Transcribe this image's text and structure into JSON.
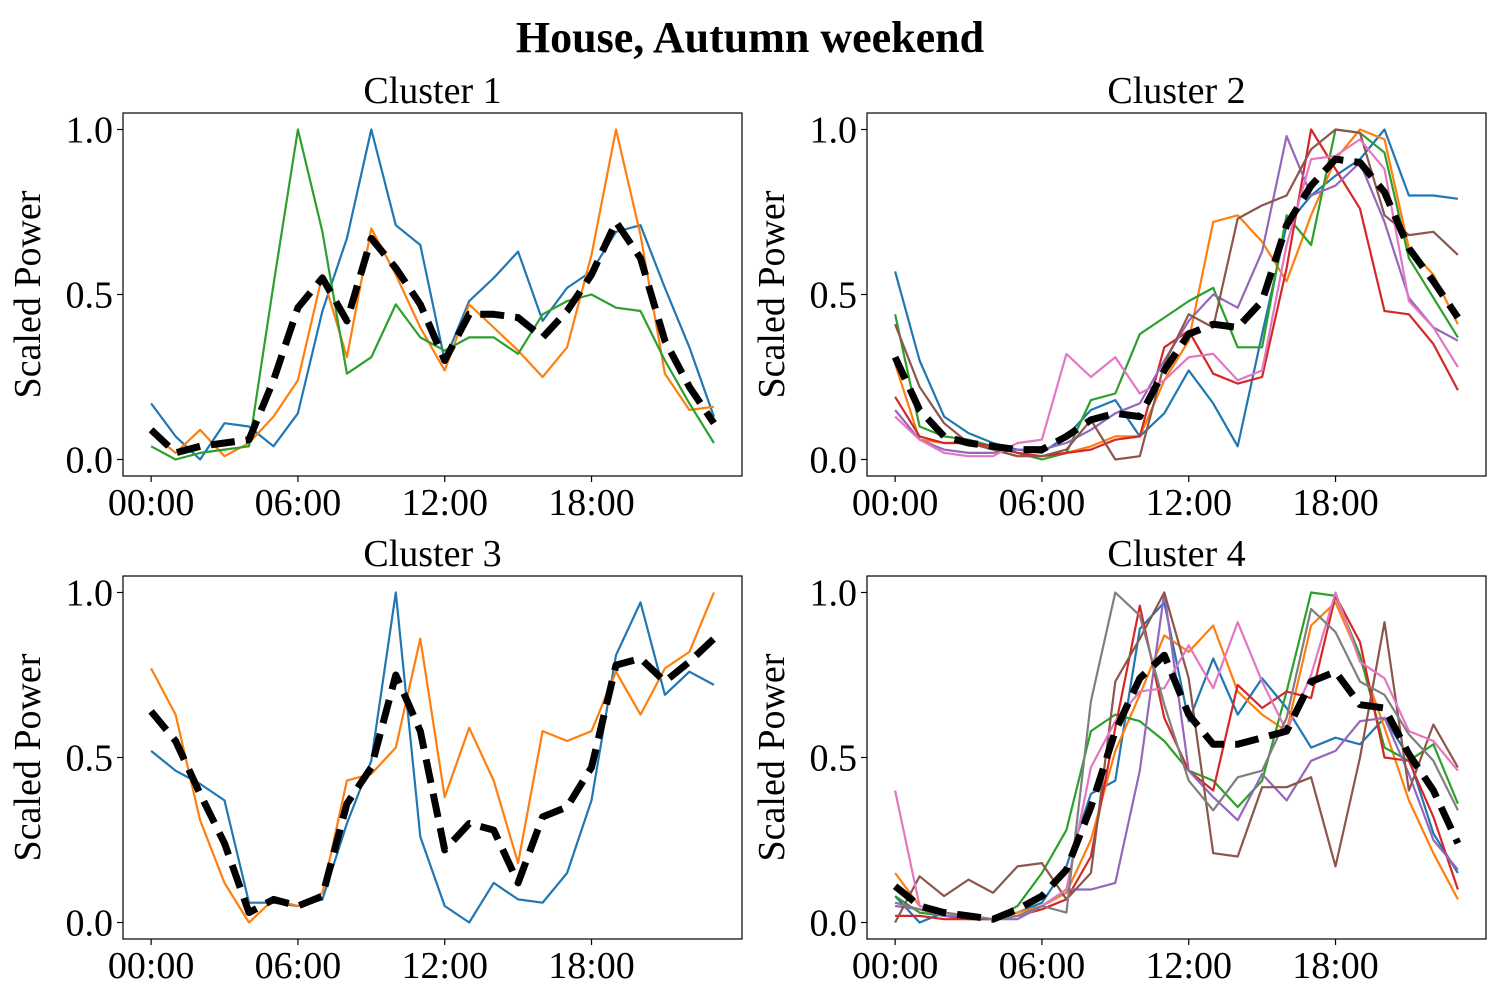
{
  "figure": {
    "title": "House, Autumn weekend"
  },
  "chart_data": [
    {
      "type": "line",
      "title": "Cluster 1",
      "xlabel": "",
      "ylabel": "Scaled Power",
      "x": [
        0,
        1,
        2,
        3,
        4,
        5,
        6,
        7,
        8,
        9,
        10,
        11,
        12,
        13,
        14,
        15,
        16,
        17,
        18,
        19,
        20,
        21,
        22,
        23
      ],
      "xlim": [
        -1.15,
        24.15
      ],
      "ylim": [
        -0.05,
        1.05
      ],
      "xticks": [
        0,
        6,
        12,
        18
      ],
      "xtick_labels": [
        "00:00",
        "06:00",
        "12:00",
        "18:00"
      ],
      "yticks": [
        0.0,
        0.5,
        1.0
      ],
      "ytick_labels": [
        "0.0",
        "0.5",
        "1.0"
      ],
      "series": [
        {
          "color": "#1f77b4",
          "values": [
            0.17,
            0.07,
            0.0,
            0.11,
            0.1,
            0.04,
            0.14,
            0.45,
            0.67,
            1.0,
            0.71,
            0.65,
            0.3,
            0.48,
            0.55,
            0.63,
            0.42,
            0.52,
            0.57,
            0.69,
            0.71,
            0.52,
            0.34,
            0.13
          ]
        },
        {
          "color": "#ff7f0e",
          "values": [
            0.08,
            0.02,
            0.09,
            0.01,
            0.05,
            0.13,
            0.24,
            0.56,
            0.31,
            0.7,
            0.56,
            0.4,
            0.27,
            0.47,
            0.4,
            0.33,
            0.25,
            0.34,
            0.62,
            1.0,
            0.68,
            0.26,
            0.15,
            0.16
          ]
        },
        {
          "color": "#2ca02c",
          "values": [
            0.04,
            0.0,
            0.02,
            0.03,
            0.04,
            0.53,
            1.0,
            0.69,
            0.26,
            0.31,
            0.47,
            0.37,
            0.33,
            0.37,
            0.37,
            0.32,
            0.44,
            0.48,
            0.5,
            0.46,
            0.45,
            0.3,
            0.17,
            0.05
          ]
        },
        {
          "name": "mean",
          "color": "#000000",
          "dashed": true,
          "values": [
            0.09,
            0.02,
            0.04,
            0.05,
            0.06,
            0.24,
            0.46,
            0.55,
            0.42,
            0.67,
            0.58,
            0.47,
            0.3,
            0.44,
            0.44,
            0.43,
            0.37,
            0.45,
            0.56,
            0.72,
            0.61,
            0.36,
            0.22,
            0.11
          ]
        }
      ]
    },
    {
      "type": "line",
      "title": "Cluster 2",
      "xlabel": "",
      "ylabel": "Scaled Power",
      "x": [
        0,
        1,
        2,
        3,
        4,
        5,
        6,
        7,
        8,
        9,
        10,
        11,
        12,
        13,
        14,
        15,
        16,
        17,
        18,
        19,
        20,
        21,
        22,
        23
      ],
      "xlim": [
        -1.15,
        24.15
      ],
      "ylim": [
        -0.05,
        1.05
      ],
      "xticks": [
        0,
        6,
        12,
        18
      ],
      "xtick_labels": [
        "00:00",
        "06:00",
        "12:00",
        "18:00"
      ],
      "yticks": [
        0.0,
        0.5,
        1.0
      ],
      "ytick_labels": [
        "0.0",
        "0.5",
        "1.0"
      ],
      "series": [
        {
          "color": "#1f77b4",
          "values": [
            0.57,
            0.3,
            0.13,
            0.08,
            0.05,
            0.03,
            0.02,
            0.07,
            0.15,
            0.18,
            0.07,
            0.14,
            0.27,
            0.17,
            0.04,
            0.38,
            0.71,
            0.8,
            0.86,
            0.91,
            1.0,
            0.8,
            0.8,
            0.79
          ]
        },
        {
          "color": "#ff7f0e",
          "values": [
            0.29,
            0.06,
            0.05,
            0.05,
            0.03,
            0.01,
            0.01,
            0.02,
            0.04,
            0.07,
            0.07,
            0.24,
            0.36,
            0.72,
            0.74,
            0.66,
            0.54,
            0.74,
            0.91,
            1.0,
            0.97,
            0.64,
            0.56,
            0.41
          ]
        },
        {
          "color": "#2ca02c",
          "values": [
            0.44,
            0.1,
            0.07,
            0.06,
            0.04,
            0.02,
            0.0,
            0.02,
            0.18,
            0.2,
            0.38,
            0.43,
            0.48,
            0.52,
            0.34,
            0.34,
            0.74,
            0.65,
            1.0,
            0.99,
            0.93,
            0.61,
            0.49,
            0.37
          ]
        },
        {
          "color": "#d62728",
          "values": [
            0.19,
            0.07,
            0.05,
            0.05,
            0.04,
            0.02,
            0.01,
            0.02,
            0.03,
            0.06,
            0.07,
            0.34,
            0.39,
            0.26,
            0.23,
            0.25,
            0.58,
            1.0,
            0.88,
            0.76,
            0.45,
            0.44,
            0.35,
            0.21
          ]
        },
        {
          "color": "#9467bd",
          "values": [
            0.15,
            0.06,
            0.03,
            0.02,
            0.02,
            0.03,
            0.03,
            0.05,
            0.09,
            0.14,
            0.17,
            0.3,
            0.42,
            0.5,
            0.46,
            0.63,
            0.98,
            0.8,
            0.83,
            0.9,
            0.72,
            0.49,
            0.4,
            0.36
          ]
        },
        {
          "color": "#8c564b",
          "values": [
            0.41,
            0.22,
            0.11,
            0.05,
            0.03,
            0.01,
            0.01,
            0.03,
            0.12,
            0.0,
            0.01,
            0.29,
            0.44,
            0.4,
            0.73,
            0.77,
            0.8,
            0.94,
            1.0,
            0.99,
            0.74,
            0.68,
            0.69,
            0.62
          ]
        },
        {
          "color": "#e377c2",
          "values": [
            0.13,
            0.06,
            0.02,
            0.01,
            0.01,
            0.05,
            0.06,
            0.32,
            0.25,
            0.31,
            0.2,
            0.24,
            0.31,
            0.32,
            0.24,
            0.27,
            0.65,
            0.91,
            0.92,
            0.97,
            0.88,
            0.48,
            0.4,
            0.28
          ]
        },
        {
          "name": "mean",
          "color": "#000000",
          "dashed": true,
          "values": [
            0.31,
            0.15,
            0.07,
            0.05,
            0.04,
            0.03,
            0.03,
            0.07,
            0.12,
            0.14,
            0.13,
            0.27,
            0.38,
            0.41,
            0.4,
            0.48,
            0.71,
            0.83,
            0.91,
            0.9,
            0.81,
            0.64,
            0.54,
            0.43
          ]
        }
      ]
    },
    {
      "type": "line",
      "title": "Cluster 3",
      "xlabel": "",
      "ylabel": "Scaled Power",
      "x": [
        0,
        1,
        2,
        3,
        4,
        5,
        6,
        7,
        8,
        9,
        10,
        11,
        12,
        13,
        14,
        15,
        16,
        17,
        18,
        19,
        20,
        21,
        22,
        23
      ],
      "xlim": [
        -1.15,
        24.15
      ],
      "ylim": [
        -0.05,
        1.05
      ],
      "xticks": [
        0,
        6,
        12,
        18
      ],
      "xtick_labels": [
        "00:00",
        "06:00",
        "12:00",
        "18:00"
      ],
      "yticks": [
        0.0,
        0.5,
        1.0
      ],
      "ytick_labels": [
        "0.0",
        "0.5",
        "1.0"
      ],
      "series": [
        {
          "color": "#1f77b4",
          "values": [
            0.52,
            0.46,
            0.42,
            0.37,
            0.06,
            0.06,
            0.05,
            0.07,
            0.3,
            0.49,
            1.0,
            0.26,
            0.05,
            0.0,
            0.12,
            0.07,
            0.06,
            0.15,
            0.37,
            0.81,
            0.97,
            0.69,
            0.76,
            0.72
          ]
        },
        {
          "color": "#ff7f0e",
          "values": [
            0.77,
            0.63,
            0.31,
            0.12,
            0.0,
            0.07,
            0.05,
            0.09,
            0.43,
            0.45,
            0.53,
            0.86,
            0.38,
            0.59,
            0.43,
            0.18,
            0.58,
            0.55,
            0.58,
            0.76,
            0.63,
            0.77,
            0.82,
            1.0
          ]
        },
        {
          "name": "mean",
          "color": "#000000",
          "dashed": true,
          "values": [
            0.64,
            0.55,
            0.39,
            0.24,
            0.03,
            0.07,
            0.05,
            0.08,
            0.36,
            0.47,
            0.75,
            0.58,
            0.22,
            0.3,
            0.28,
            0.12,
            0.32,
            0.35,
            0.47,
            0.78,
            0.8,
            0.73,
            0.79,
            0.86
          ]
        }
      ]
    },
    {
      "type": "line",
      "title": "Cluster 4",
      "xlabel": "",
      "ylabel": "Scaled Power",
      "x": [
        0,
        1,
        2,
        3,
        4,
        5,
        6,
        7,
        8,
        9,
        10,
        11,
        12,
        13,
        14,
        15,
        16,
        17,
        18,
        19,
        20,
        21,
        22,
        23
      ],
      "xlim": [
        -1.15,
        24.15
      ],
      "ylim": [
        -0.05,
        1.05
      ],
      "xticks": [
        0,
        6,
        12,
        18
      ],
      "xtick_labels": [
        "00:00",
        "06:00",
        "12:00",
        "18:00"
      ],
      "yticks": [
        0.0,
        0.5,
        1.0
      ],
      "ytick_labels": [
        "0.0",
        "0.5",
        "1.0"
      ],
      "series": [
        {
          "color": "#1f77b4",
          "values": [
            0.08,
            0.0,
            0.03,
            0.02,
            0.01,
            0.03,
            0.06,
            0.17,
            0.39,
            0.43,
            0.89,
            0.97,
            0.61,
            0.8,
            0.63,
            0.74,
            0.65,
            0.53,
            0.56,
            0.54,
            0.62,
            0.5,
            0.27,
            0.15
          ]
        },
        {
          "color": "#ff7f0e",
          "values": [
            0.15,
            0.05,
            0.03,
            0.02,
            0.01,
            0.03,
            0.05,
            0.09,
            0.25,
            0.52,
            0.69,
            0.87,
            0.82,
            0.9,
            0.7,
            0.63,
            0.58,
            0.9,
            0.97,
            0.8,
            0.59,
            0.37,
            0.21,
            0.07
          ]
        },
        {
          "color": "#2ca02c",
          "values": [
            0.08,
            0.03,
            0.02,
            0.01,
            0.01,
            0.05,
            0.15,
            0.28,
            0.58,
            0.63,
            0.61,
            0.55,
            0.46,
            0.43,
            0.35,
            0.43,
            0.7,
            1.0,
            0.99,
            0.81,
            0.53,
            0.49,
            0.54,
            0.36
          ]
        },
        {
          "color": "#d62728",
          "values": [
            0.02,
            0.02,
            0.01,
            0.01,
            0.01,
            0.02,
            0.04,
            0.07,
            0.2,
            0.59,
            0.96,
            0.62,
            0.46,
            0.4,
            0.72,
            0.65,
            0.7,
            0.68,
            0.99,
            0.85,
            0.5,
            0.49,
            0.32,
            0.1
          ]
        },
        {
          "color": "#9467bd",
          "values": [
            0.05,
            0.04,
            0.02,
            0.02,
            0.01,
            0.01,
            0.05,
            0.1,
            0.1,
            0.12,
            0.46,
            1.0,
            0.46,
            0.38,
            0.31,
            0.45,
            0.37,
            0.49,
            0.52,
            0.61,
            0.62,
            0.45,
            0.25,
            0.16
          ]
        },
        {
          "color": "#8c564b",
          "values": [
            0.0,
            0.14,
            0.08,
            0.13,
            0.09,
            0.17,
            0.18,
            0.07,
            0.15,
            0.73,
            0.86,
            1.0,
            0.74,
            0.21,
            0.2,
            0.41,
            0.41,
            0.44,
            0.17,
            0.5,
            0.91,
            0.4,
            0.6,
            0.47
          ]
        },
        {
          "color": "#e377c2",
          "values": [
            0.4,
            0.05,
            0.03,
            0.02,
            0.01,
            0.02,
            0.05,
            0.1,
            0.47,
            0.61,
            0.7,
            0.71,
            0.84,
            0.71,
            0.91,
            0.73,
            0.58,
            0.75,
            1.0,
            0.79,
            0.74,
            0.58,
            0.55,
            0.46
          ]
        },
        {
          "color": "#7f7f7f",
          "values": [
            0.06,
            0.04,
            0.03,
            0.02,
            0.01,
            0.02,
            0.05,
            0.03,
            0.67,
            1.0,
            0.93,
            0.66,
            0.43,
            0.34,
            0.44,
            0.46,
            0.62,
            0.95,
            0.88,
            0.73,
            0.69,
            0.57,
            0.49,
            0.34
          ]
        },
        {
          "name": "mean",
          "color": "#000000",
          "dashed": true,
          "values": [
            0.11,
            0.05,
            0.03,
            0.02,
            0.01,
            0.04,
            0.08,
            0.16,
            0.35,
            0.58,
            0.74,
            0.81,
            0.63,
            0.54,
            0.54,
            0.56,
            0.58,
            0.73,
            0.76,
            0.66,
            0.65,
            0.51,
            0.4,
            0.24
          ]
        }
      ]
    }
  ]
}
